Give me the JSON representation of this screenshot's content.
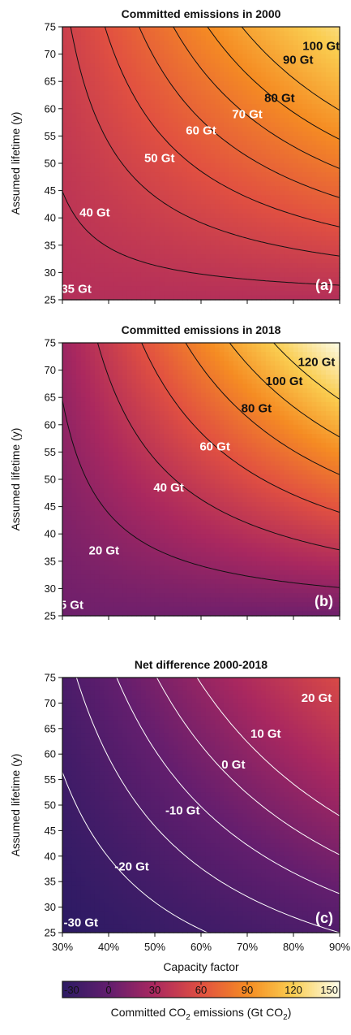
{
  "chart_data": [
    {
      "type": "heatmap",
      "title": "Committed emissions in 2000",
      "panel_label": "(a)",
      "xlabel": "Capacity factor",
      "ylabel": "Assumed lifetime (y)",
      "xlim": [
        0.3,
        0.9
      ],
      "ylim": [
        25,
        75
      ],
      "x_ticks": [
        "30%",
        "40%",
        "50%",
        "60%",
        "70%",
        "80%",
        "90%"
      ],
      "y_ticks": [
        "25",
        "30",
        "35",
        "40",
        "45",
        "50",
        "55",
        "60",
        "65",
        "70",
        "75"
      ],
      "contour_levels": [
        40,
        50,
        60,
        70,
        80,
        90,
        100
      ],
      "contour_labels": [
        {
          "text": "35 Gt",
          "x": 0.33,
          "y": 27
        },
        {
          "text": "40 Gt",
          "x": 0.37,
          "y": 41
        },
        {
          "text": "50 Gt",
          "x": 0.51,
          "y": 51
        },
        {
          "text": "60 Gt",
          "x": 0.6,
          "y": 56
        },
        {
          "text": "70 Gt",
          "x": 0.7,
          "y": 59
        },
        {
          "text": "80 Gt",
          "x": 0.77,
          "y": 62
        },
        {
          "text": "90 Gt",
          "x": 0.81,
          "y": 69
        },
        {
          "text": "100 Gt",
          "x": 0.86,
          "y": 71.5
        }
      ],
      "colorbar_range": [
        -30,
        150
      ],
      "contour_color": "#111111"
    },
    {
      "type": "heatmap",
      "title": "Committed emissions in 2018",
      "panel_label": "(b)",
      "xlabel": "",
      "ylabel": "Assumed lifetime (y)",
      "xlim": [
        0.3,
        0.9
      ],
      "ylim": [
        25,
        75
      ],
      "x_ticks": [
        "30%",
        "40%",
        "50%",
        "60%",
        "70%",
        "80%",
        "90%"
      ],
      "y_ticks": [
        "25",
        "30",
        "35",
        "40",
        "45",
        "50",
        "55",
        "60",
        "65",
        "70",
        "75"
      ],
      "contour_levels": [
        20,
        40,
        60,
        80,
        100,
        120
      ],
      "contour_labels": [
        {
          "text": "5 Gt",
          "x": 0.32,
          "y": 27
        },
        {
          "text": "20 Gt",
          "x": 0.39,
          "y": 37
        },
        {
          "text": "40 Gt",
          "x": 0.53,
          "y": 48.5
        },
        {
          "text": "60 Gt",
          "x": 0.63,
          "y": 56
        },
        {
          "text": "80 Gt",
          "x": 0.72,
          "y": 63
        },
        {
          "text": "100 Gt",
          "x": 0.78,
          "y": 68
        },
        {
          "text": "120 Gt",
          "x": 0.85,
          "y": 71.5
        }
      ],
      "colorbar_range": [
        -30,
        150
      ],
      "contour_color": "#111111"
    },
    {
      "type": "heatmap",
      "title": "Net difference 2000-2018",
      "panel_label": "(c)",
      "xlabel": "Capacity factor",
      "ylabel": "Assumed lifetime (y)",
      "xlim": [
        0.3,
        0.9
      ],
      "ylim": [
        25,
        75
      ],
      "x_ticks": [
        "30%",
        "40%",
        "50%",
        "60%",
        "70%",
        "80%",
        "90%"
      ],
      "y_ticks": [
        "25",
        "30",
        "35",
        "40",
        "45",
        "50",
        "55",
        "60",
        "65",
        "70",
        "75"
      ],
      "contour_levels": [
        -20,
        -10,
        0,
        10,
        20
      ],
      "contour_labels": [
        {
          "text": "-30 Gt",
          "x": 0.34,
          "y": 27
        },
        {
          "text": "-20 Gt",
          "x": 0.45,
          "y": 38
        },
        {
          "text": "-10 Gt",
          "x": 0.56,
          "y": 49
        },
        {
          "text": "0 Gt",
          "x": 0.67,
          "y": 58
        },
        {
          "text": "10 Gt",
          "x": 0.74,
          "y": 64
        },
        {
          "text": "20 Gt",
          "x": 0.85,
          "y": 71
        }
      ],
      "colorbar_range": [
        -30,
        150
      ],
      "contour_color": "#ffffff"
    }
  ],
  "colorbar": {
    "min": -30,
    "max": 150,
    "ticks": [
      "-30",
      "0",
      "30",
      "60",
      "90",
      "120",
      "150"
    ],
    "label_prefix": "Committed CO",
    "label_sub": "2",
    "label_middle": " emissions (Gt CO",
    "label_sub2": "2",
    "label_suffix": ")",
    "colormap": "inferno-like"
  }
}
